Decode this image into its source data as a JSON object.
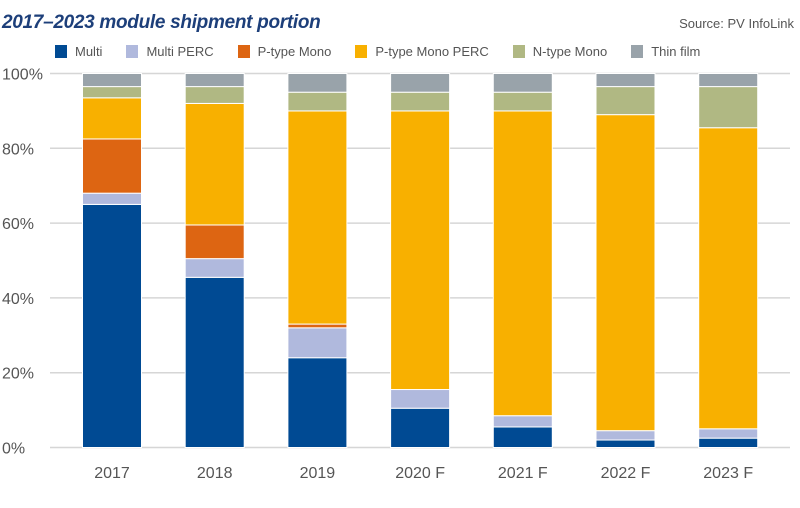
{
  "chart_data": {
    "type": "bar",
    "stacked": true,
    "title": "2017–2023 module shipment portion",
    "source": "Source: PV InfoLink",
    "categories": [
      "2017",
      "2018",
      "2019",
      "2020 F",
      "2021 F",
      "2022 F",
      "2023 F"
    ],
    "ylim": [
      0,
      100
    ],
    "yticks": [
      "0%",
      "20%",
      "40%",
      "60%",
      "80%",
      "100%"
    ],
    "grid": true,
    "legend_position": "top",
    "series": [
      {
        "name": "Multi",
        "color": "#004a93",
        "values": [
          65,
          45.5,
          24,
          10.5,
          5.5,
          2,
          2.5
        ]
      },
      {
        "name": "Multi PERC",
        "color": "#b0b9dd",
        "values": [
          3,
          5,
          8,
          5,
          3,
          2.5,
          2.5
        ]
      },
      {
        "name": "P-type Mono",
        "color": "#dd6512",
        "values": [
          14.5,
          9,
          1,
          0,
          0,
          0,
          0
        ]
      },
      {
        "name": "P-type Mono PERC",
        "color": "#f8b000",
        "values": [
          11,
          32.5,
          57,
          74.5,
          81.5,
          84.5,
          80.5
        ]
      },
      {
        "name": "N-type Mono",
        "color": "#b0b883",
        "values": [
          3,
          4.5,
          5,
          5,
          5,
          7.5,
          11
        ]
      },
      {
        "name": "Thin film",
        "color": "#99a3aa",
        "values": [
          3.5,
          3.5,
          5,
          5,
          5,
          3.5,
          3.5
        ]
      }
    ]
  }
}
